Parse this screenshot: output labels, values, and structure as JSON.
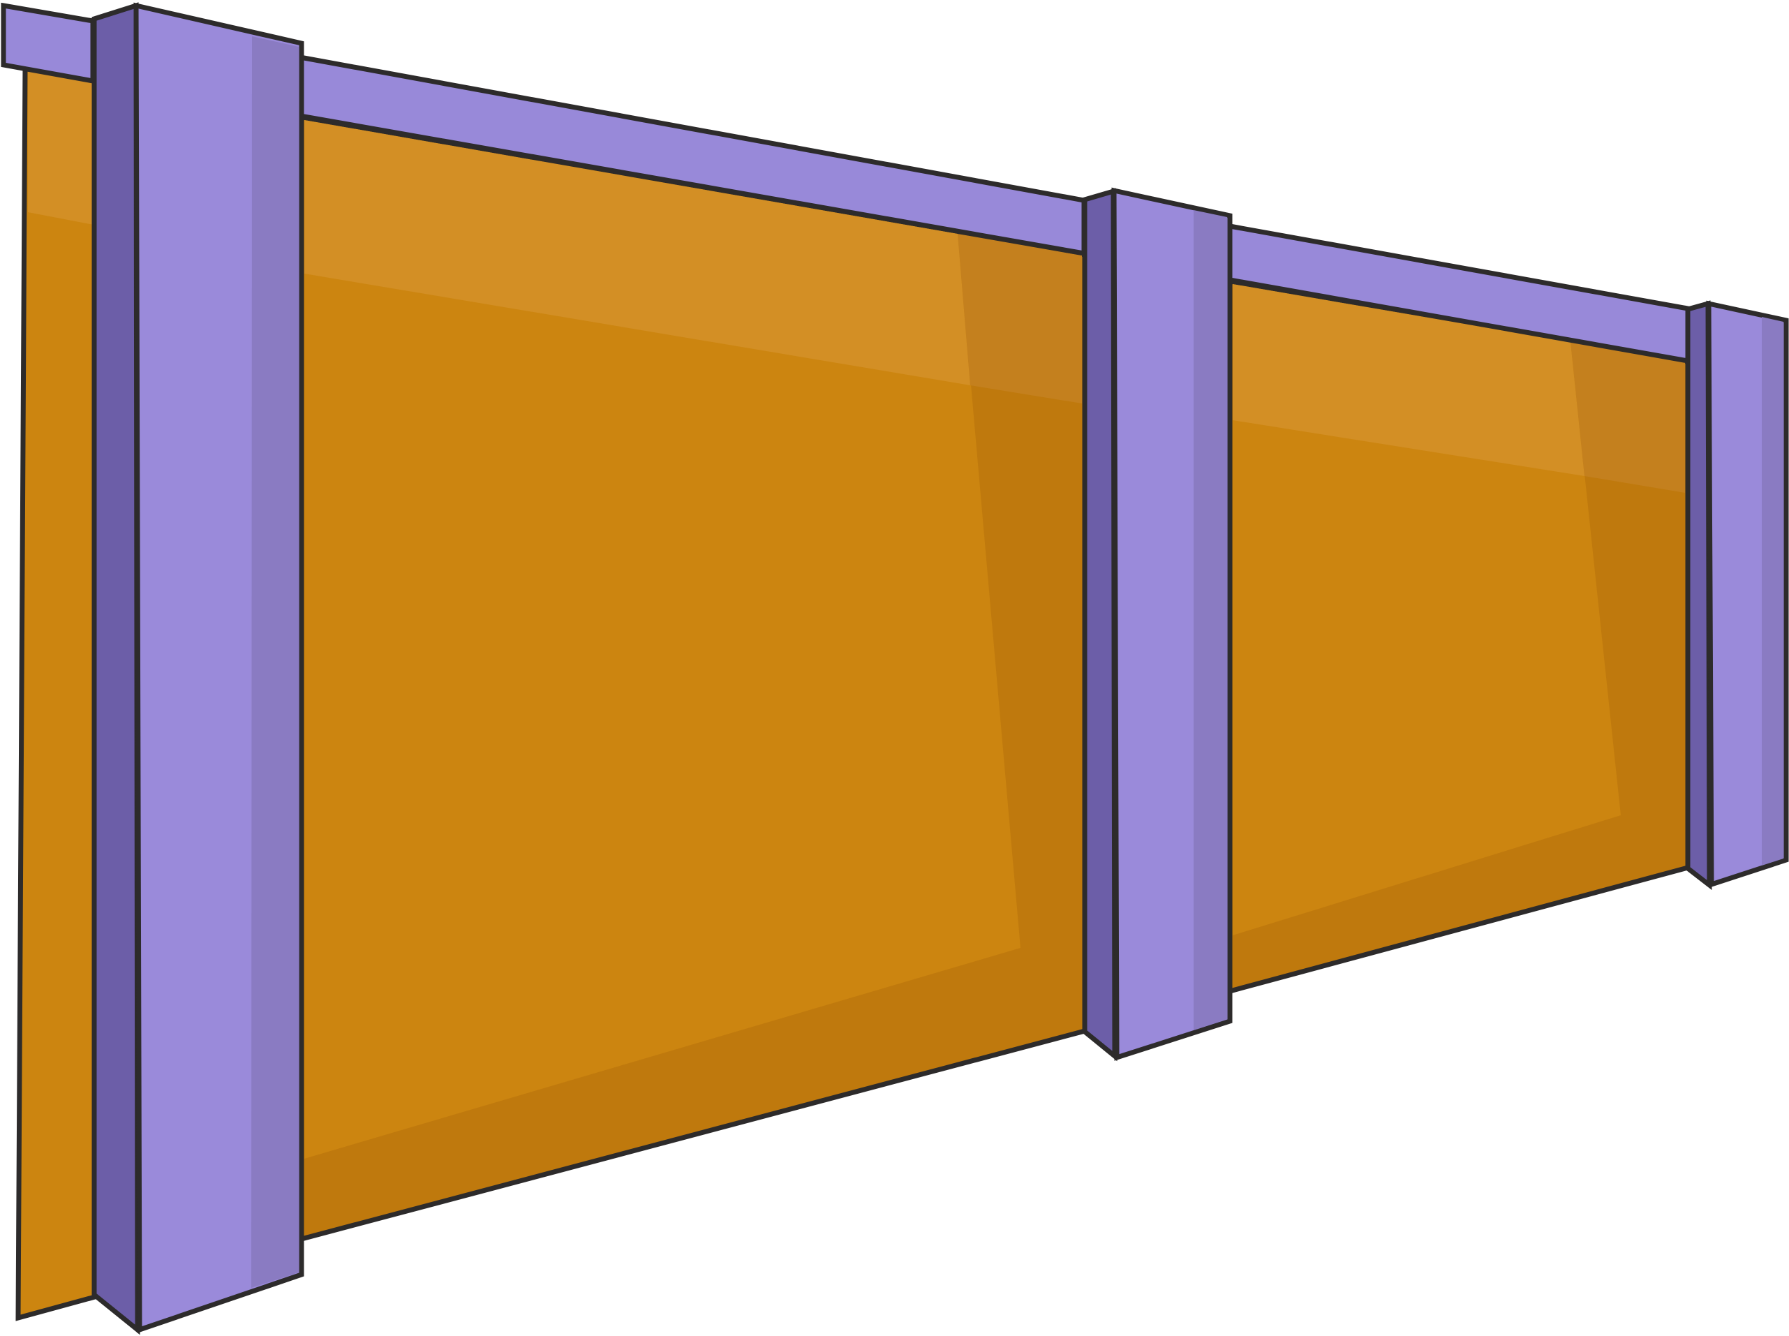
{
  "scene": {
    "subject": "fence-illustration",
    "panel_count": 3,
    "post_count": 3
  },
  "colors": {
    "background": "#ffffff",
    "outline": "#2d2b2b",
    "panel_base": "#cc8510",
    "panel_shadow": "#bf790d",
    "panel_highlight": "#d38f25",
    "panel_corner": "#c4801e",
    "rail_top": "#9889d9",
    "post_front": "#9a8ada",
    "post_side_dark": "#6c5ea8",
    "post_side_light": "#8a7bc2"
  }
}
